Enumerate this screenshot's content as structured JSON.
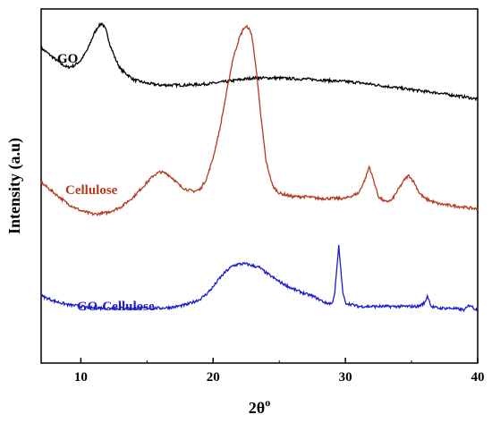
{
  "chart_data": {
    "type": "line",
    "title": "",
    "xlabel": "2θ",
    "xlabel_superscript": "o",
    "ylabel": "Intensity (a.u)",
    "xlim": [
      7,
      40
    ],
    "ylim": [
      0,
      1
    ],
    "x_ticks": [
      10,
      20,
      30,
      40
    ],
    "x_tick_labels": [
      "10",
      "20",
      "30",
      "40"
    ],
    "y_tick_labels_shown": false,
    "grid": false,
    "legend": "none (series labeled inline)",
    "series": [
      {
        "name": "GO",
        "color": "#000000",
        "x": [
          7,
          7.5,
          8,
          8.5,
          9,
          9.5,
          10,
          10.5,
          11,
          11.3,
          11.6,
          11.9,
          12.2,
          12.6,
          13,
          14,
          15,
          16,
          17,
          18,
          19,
          20,
          21,
          22,
          23,
          24,
          25,
          26,
          27,
          28,
          29,
          30,
          31,
          32,
          33,
          34,
          35,
          36,
          37,
          38,
          39,
          40
        ],
        "y": [
          0.89,
          0.875,
          0.86,
          0.845,
          0.835,
          0.84,
          0.855,
          0.885,
          0.93,
          0.95,
          0.96,
          0.94,
          0.9,
          0.86,
          0.83,
          0.8,
          0.79,
          0.785,
          0.785,
          0.785,
          0.787,
          0.79,
          0.795,
          0.8,
          0.805,
          0.805,
          0.805,
          0.803,
          0.802,
          0.8,
          0.797,
          0.795,
          0.792,
          0.787,
          0.782,
          0.777,
          0.772,
          0.767,
          0.763,
          0.757,
          0.752,
          0.745
        ]
      },
      {
        "name": "Cellulose",
        "color": "#b5391f",
        "x": [
          7,
          8,
          9,
          10,
          11,
          12,
          13,
          14,
          15,
          15.5,
          16,
          16.5,
          17,
          17.5,
          18,
          18.5,
          19,
          19.5,
          20,
          20.5,
          21,
          21.5,
          22,
          22.3,
          22.6,
          22.9,
          23.2,
          23.6,
          24,
          24.5,
          25,
          25.5,
          26,
          27,
          28,
          29,
          30,
          31,
          31.5,
          31.8,
          32.1,
          32.5,
          33,
          33.5,
          34,
          34.5,
          34.8,
          35.2,
          35.6,
          36,
          37,
          38,
          39,
          40
        ],
        "y": [
          0.51,
          0.48,
          0.45,
          0.43,
          0.42,
          0.425,
          0.44,
          0.47,
          0.51,
          0.53,
          0.54,
          0.535,
          0.52,
          0.5,
          0.49,
          0.485,
          0.49,
          0.52,
          0.58,
          0.66,
          0.76,
          0.86,
          0.92,
          0.945,
          0.95,
          0.93,
          0.85,
          0.7,
          0.57,
          0.5,
          0.48,
          0.475,
          0.47,
          0.47,
          0.465,
          0.465,
          0.465,
          0.48,
          0.52,
          0.555,
          0.52,
          0.47,
          0.455,
          0.46,
          0.49,
          0.52,
          0.53,
          0.51,
          0.48,
          0.465,
          0.45,
          0.445,
          0.44,
          0.435
        ]
      },
      {
        "name": "GO-Cellulose",
        "color": "#1c1cc8",
        "x": [
          7,
          8,
          9,
          10,
          11,
          12,
          13,
          14,
          15,
          16,
          17,
          18,
          19,
          19.5,
          20,
          20.5,
          21,
          21.5,
          22,
          22.5,
          23,
          23.5,
          24,
          25,
          26,
          27,
          27.5,
          28,
          28.5,
          29,
          29.2,
          29.5,
          29.8,
          30,
          30.5,
          31,
          32,
          33,
          34,
          35,
          35.5,
          36,
          36.2,
          36.5,
          37,
          38,
          39,
          39.4,
          39.7,
          40
        ],
        "y": [
          0.19,
          0.175,
          0.165,
          0.16,
          0.155,
          0.155,
          0.155,
          0.155,
          0.155,
          0.155,
          0.158,
          0.165,
          0.18,
          0.195,
          0.215,
          0.24,
          0.26,
          0.275,
          0.28,
          0.28,
          0.275,
          0.27,
          0.255,
          0.23,
          0.21,
          0.195,
          0.19,
          0.18,
          0.17,
          0.168,
          0.2,
          0.33,
          0.2,
          0.17,
          0.165,
          0.16,
          0.16,
          0.16,
          0.16,
          0.16,
          0.16,
          0.17,
          0.19,
          0.16,
          0.155,
          0.155,
          0.15,
          0.165,
          0.155,
          0.15
        ]
      }
    ]
  }
}
